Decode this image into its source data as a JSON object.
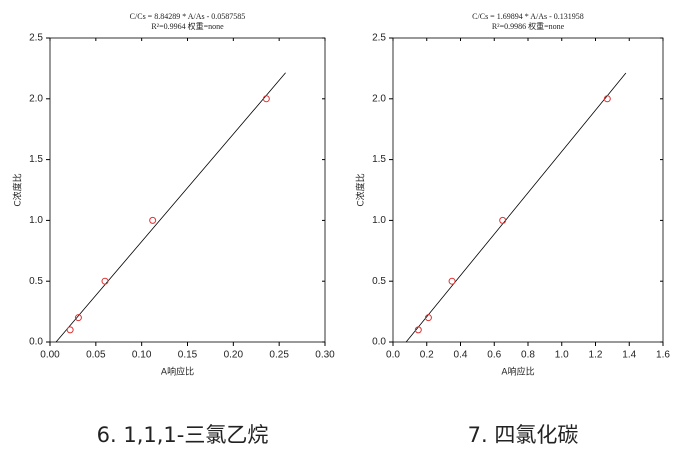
{
  "chart_data": [
    {
      "type": "scatter",
      "title": "C/Cs = 8.84289 * A/As - 0.0587585",
      "subtitle": "R²=0.9964 权重=none",
      "x_label": "A响应比",
      "y_label": "C浓度比",
      "caption": "6.   1,1,1-三氯乙烷",
      "points": {
        "x": [
          0.022,
          0.031,
          0.06,
          0.112,
          0.236
        ],
        "y": [
          0.1,
          0.2,
          0.5,
          1.0,
          2.0
        ],
        "color": "#e03030"
      },
      "fit_line": {
        "x": [
          0.0066,
          0.257
        ],
        "y": [
          0,
          2.214
        ],
        "color": "#000000"
      },
      "xlim": [
        0,
        0.3
      ],
      "ylim": [
        0,
        2.5
      ],
      "xticks": [
        {
          "value": 0,
          "label": "0.00"
        },
        {
          "value": 0.05,
          "label": "0.05"
        },
        {
          "value": 0.1,
          "label": "0.10"
        },
        {
          "value": 0.15,
          "label": "0.15"
        },
        {
          "value": 0.2,
          "label": "0.20"
        },
        {
          "value": 0.25,
          "label": "0.25"
        },
        {
          "value": 0.3,
          "label": "0.30"
        }
      ],
      "yticks": [
        {
          "value": 0,
          "label": "0.0"
        },
        {
          "value": 0.5,
          "label": "0.5"
        },
        {
          "value": 1,
          "label": "1.0"
        },
        {
          "value": 1.5,
          "label": "1.5"
        },
        {
          "value": 2,
          "label": "2.0"
        },
        {
          "value": 2.5,
          "label": "2.5"
        }
      ]
    },
    {
      "type": "scatter",
      "title": "C/Cs = 1.69894 * A/As - 0.131958",
      "subtitle": "R²=0.9986 权重=none",
      "x_label": "A响应比",
      "y_label": "C浓度比",
      "caption": "7. 四氯化碳",
      "points": {
        "x": [
          0.15,
          0.21,
          0.35,
          0.65,
          1.27
        ],
        "y": [
          0.1,
          0.2,
          0.5,
          1.0,
          2.0
        ],
        "color": "#e03030"
      },
      "fit_line": {
        "x": [
          0.0777,
          1.38
        ],
        "y": [
          0,
          2.212
        ],
        "color": "#000000"
      },
      "xlim": [
        0,
        1.6
      ],
      "ylim": [
        0,
        2.5
      ],
      "xticks": [
        {
          "value": 0,
          "label": "0.0"
        },
        {
          "value": 0.2,
          "label": "0.2"
        },
        {
          "value": 0.4,
          "label": "0.4"
        },
        {
          "value": 0.6,
          "label": "0.6"
        },
        {
          "value": 0.8,
          "label": "0.8"
        },
        {
          "value": 1,
          "label": "1.0"
        },
        {
          "value": 1.2,
          "label": "1.2"
        },
        {
          "value": 1.4,
          "label": "1.4"
        },
        {
          "value": 1.6,
          "label": "1.6"
        }
      ],
      "yticks": [
        {
          "value": 0,
          "label": "0.0"
        },
        {
          "value": 0.5,
          "label": "0.5"
        },
        {
          "value": 1,
          "label": "1.0"
        },
        {
          "value": 1.5,
          "label": "1.5"
        },
        {
          "value": 2,
          "label": "2.0"
        },
        {
          "value": 2.5,
          "label": "2.5"
        }
      ]
    }
  ]
}
